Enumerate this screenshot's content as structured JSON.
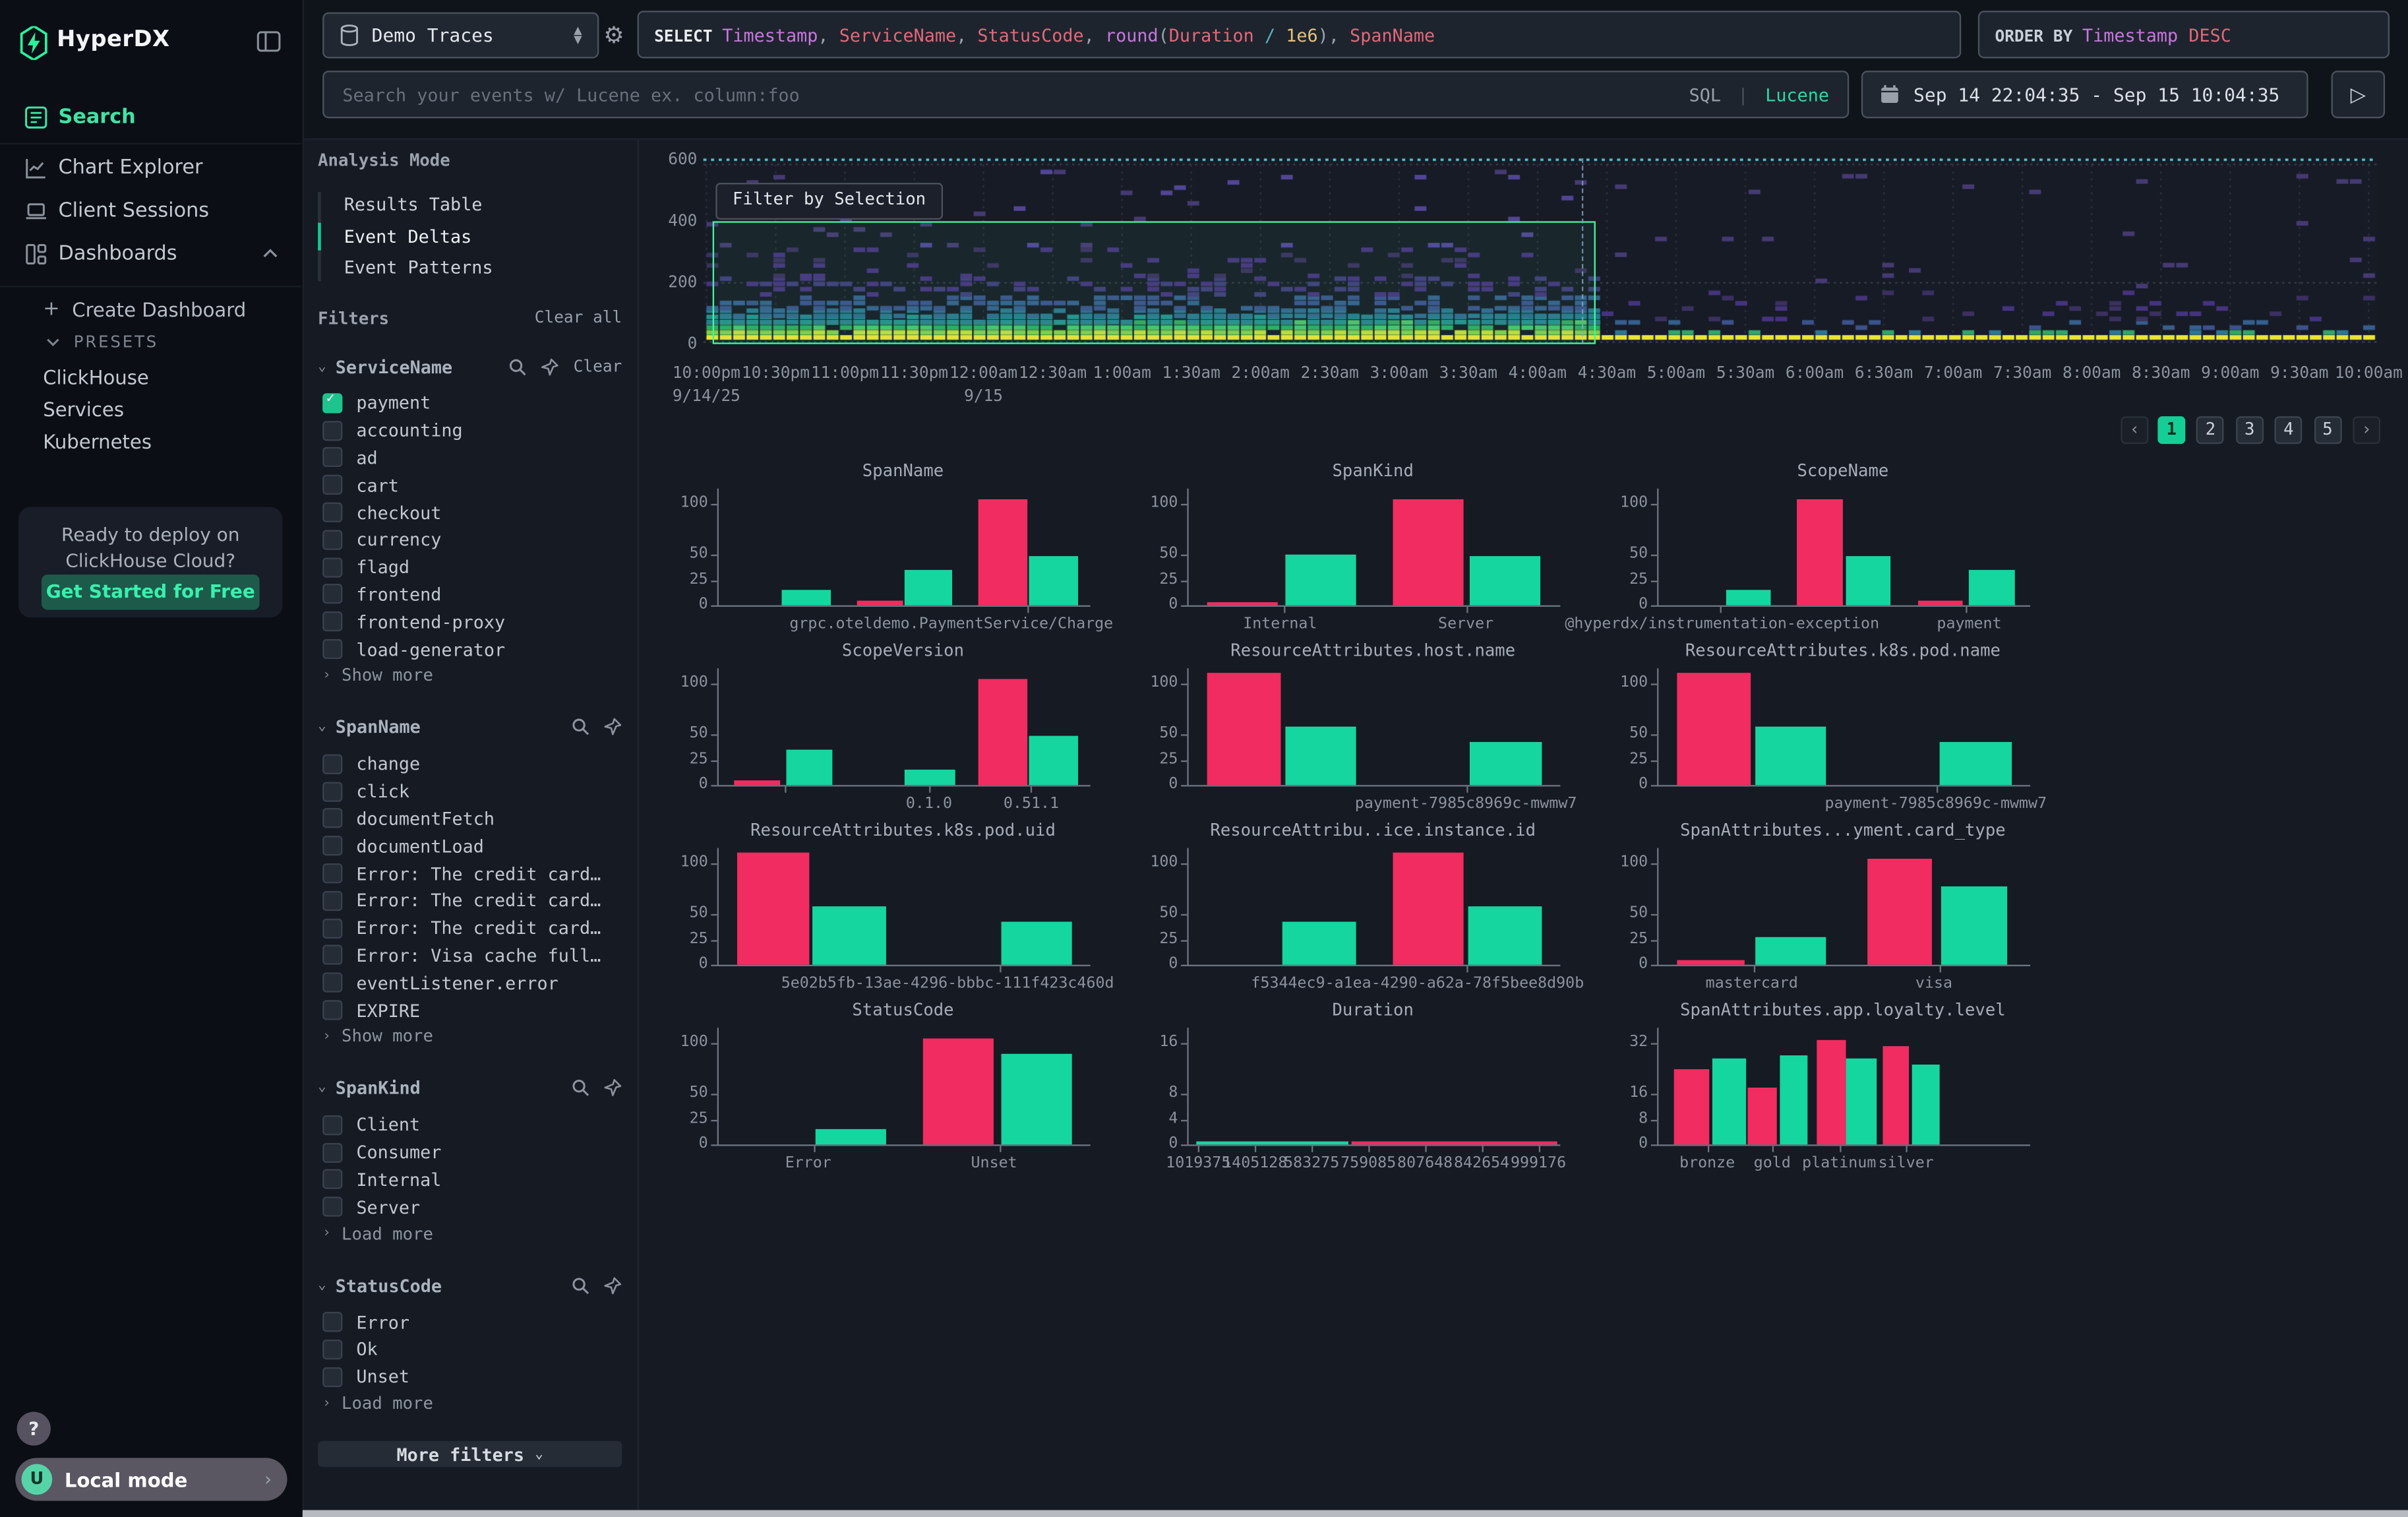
{
  "accent": {
    "green": "#16d6a0",
    "pink": "#f12c60",
    "brand_green": "#2bf09c"
  },
  "sidebar": {
    "brand": "HyperDX",
    "nav": [
      {
        "label": "Search",
        "active": true
      },
      {
        "label": "Chart Explorer",
        "active": false
      },
      {
        "label": "Client Sessions",
        "active": false
      },
      {
        "label": "Dashboards",
        "active": false,
        "expanded": true
      }
    ],
    "create_dashboard": "Create Dashboard",
    "presets": "PRESETS",
    "preset_items": [
      "ClickHouse",
      "Services",
      "Kubernetes"
    ],
    "promo": {
      "line1": "Ready to deploy on",
      "line2": "ClickHouse Cloud?",
      "cta": "Get Started for Free"
    },
    "help": "?",
    "avatar": "U",
    "local_mode": "Local mode"
  },
  "topbar": {
    "source": "Demo Traces",
    "select_tokens": [
      {
        "t": "SELECT ",
        "c": "kw"
      },
      {
        "t": "Timestamp",
        "c": "purple"
      },
      {
        "t": ", ",
        "c": "plain"
      },
      {
        "t": "ServiceName",
        "c": "red"
      },
      {
        "t": ", ",
        "c": "plain"
      },
      {
        "t": "StatusCode",
        "c": "red"
      },
      {
        "t": ", ",
        "c": "plain"
      },
      {
        "t": "round",
        "c": "purple"
      },
      {
        "t": "(",
        "c": "plain"
      },
      {
        "t": "Duration",
        "c": "red"
      },
      {
        "t": " ",
        "c": "plain"
      },
      {
        "t": "/",
        "c": "cyan"
      },
      {
        "t": " ",
        "c": "plain"
      },
      {
        "t": "1e6",
        "c": "gold"
      },
      {
        "t": ")",
        "c": "plain"
      },
      {
        "t": ", ",
        "c": "plain"
      },
      {
        "t": "SpanName",
        "c": "red"
      }
    ],
    "orderby_tokens": [
      {
        "t": "ORDER BY ",
        "c": "kw2"
      },
      {
        "t": "Timestamp",
        "c": "purple"
      },
      {
        "t": " ",
        "c": "plain"
      },
      {
        "t": "DESC",
        "c": "red"
      }
    ],
    "search_placeholder": "Search your events w/ Lucene ex. column:foo",
    "lang_sql": "SQL",
    "lang_sep": "|",
    "lang_lucene": "Lucene",
    "time_range": "Sep 14 22:04:35 - Sep 15 10:04:35",
    "run_glyph": "▷"
  },
  "filters_panel": {
    "analysis_mode_title": "Analysis Mode",
    "analysis_modes": [
      {
        "label": "Results Table",
        "active": false
      },
      {
        "label": "Event Deltas",
        "active": true
      },
      {
        "label": "Event Patterns",
        "active": false
      }
    ],
    "filters_title": "Filters",
    "clear_all": "Clear all",
    "groups": [
      {
        "name": "ServiceName",
        "clear": "Clear",
        "more": "Show more",
        "items": [
          {
            "label": "payment",
            "checked": true
          },
          {
            "label": "accounting",
            "checked": false
          },
          {
            "label": "ad",
            "checked": false
          },
          {
            "label": "cart",
            "checked": false
          },
          {
            "label": "checkout",
            "checked": false
          },
          {
            "label": "currency",
            "checked": false
          },
          {
            "label": "flagd",
            "checked": false
          },
          {
            "label": "frontend",
            "checked": false
          },
          {
            "label": "frontend-proxy",
            "checked": false
          },
          {
            "label": "load-generator",
            "checked": false
          }
        ]
      },
      {
        "name": "SpanName",
        "clear": null,
        "more": "Show more",
        "items": [
          {
            "label": "change",
            "checked": false
          },
          {
            "label": "click",
            "checked": false
          },
          {
            "label": "documentFetch",
            "checked": false
          },
          {
            "label": "documentLoad",
            "checked": false
          },
          {
            "label": "Error: The credit card (…",
            "checked": false
          },
          {
            "label": "Error: The credit card (…",
            "checked": false
          },
          {
            "label": "Error: The credit card (…",
            "checked": false
          },
          {
            "label": "Error: Visa cache full: …",
            "checked": false
          },
          {
            "label": "eventListener.error",
            "checked": false
          },
          {
            "label": "EXPIRE",
            "checked": false
          }
        ]
      },
      {
        "name": "SpanKind",
        "clear": null,
        "more": "Load more",
        "items": [
          {
            "label": "Client",
            "checked": false
          },
          {
            "label": "Consumer",
            "checked": false
          },
          {
            "label": "Internal",
            "checked": false
          },
          {
            "label": "Server",
            "checked": false
          }
        ]
      },
      {
        "name": "StatusCode",
        "clear": null,
        "more": "Load more",
        "items": [
          {
            "label": "Error",
            "checked": false
          },
          {
            "label": "Ok",
            "checked": false
          },
          {
            "label": "Unset",
            "checked": false
          }
        ]
      }
    ],
    "more_filters": "More filters"
  },
  "heatmap": {
    "filter_button": "Filter by Selection",
    "yticks": [
      "600",
      "400",
      "200",
      "0"
    ],
    "xticks": [
      "10:00pm",
      "10:30pm",
      "11:00pm",
      "11:30pm",
      "12:00am",
      "12:30am",
      "1:00am",
      "1:30am",
      "2:00am",
      "2:30am",
      "3:00am",
      "3:30am",
      "4:00am",
      "4:30am",
      "5:00am",
      "5:30am",
      "6:00am",
      "6:30am",
      "7:00am",
      "7:30am",
      "8:00am",
      "8:30am",
      "9:00am",
      "9:30am",
      "10:00am"
    ],
    "date_labels": [
      {
        "text": "9/14/25",
        "tick": 0
      },
      {
        "text": "9/15",
        "tick": 4
      }
    ]
  },
  "pagination": {
    "prev": "‹",
    "pages": [
      "1",
      "2",
      "3",
      "4",
      "5"
    ],
    "active": "1",
    "next": "›"
  },
  "chart_data": [
    {
      "type": "bar",
      "title": "SpanName",
      "ymax": 100,
      "yticks": [
        "0",
        "25",
        "50",
        "100"
      ],
      "bars": [
        {
          "color": "green",
          "value": 15,
          "x": 0.17,
          "w": 0.13
        },
        {
          "color": "pink",
          "value": 4,
          "x": 0.37,
          "w": 0.125
        },
        {
          "color": "green",
          "value": 35,
          "x": 0.5,
          "w": 0.13
        },
        {
          "color": "pink",
          "value": 105,
          "x": 0.7,
          "w": 0.13
        },
        {
          "color": "green",
          "value": 49,
          "x": 0.835,
          "w": 0.13
        }
      ],
      "xticks": [
        0.835
      ],
      "xlabels": [
        {
          "pos": 0.63,
          "text": "grpc.oteldemo.PaymentService/Charge"
        }
      ]
    },
    {
      "type": "bar",
      "title": "SpanKind",
      "ymax": 100,
      "yticks": [
        "0",
        "25",
        "50",
        "100"
      ],
      "bars": [
        {
          "color": "pink",
          "value": 3,
          "x": 0.05,
          "w": 0.19
        },
        {
          "color": "green",
          "value": 50,
          "x": 0.26,
          "w": 0.19
        },
        {
          "color": "pink",
          "value": 105,
          "x": 0.55,
          "w": 0.19
        },
        {
          "color": "green",
          "value": 49,
          "x": 0.755,
          "w": 0.19
        }
      ],
      "xticks": [
        0.26,
        0.75
      ],
      "xlabels": [
        {
          "pos": 0.25,
          "text": "Internal"
        },
        {
          "pos": 0.75,
          "text": "Server"
        }
      ]
    },
    {
      "type": "bar",
      "title": "ScopeName",
      "ymax": 100,
      "yticks": [
        "0",
        "25",
        "50",
        "100"
      ],
      "bars": [
        {
          "color": "green",
          "value": 15,
          "x": 0.18,
          "w": 0.12
        },
        {
          "color": "pink",
          "value": 105,
          "x": 0.37,
          "w": 0.125
        },
        {
          "color": "green",
          "value": 49,
          "x": 0.505,
          "w": 0.12
        },
        {
          "color": "pink",
          "value": 4,
          "x": 0.7,
          "w": 0.12
        },
        {
          "color": "green",
          "value": 35,
          "x": 0.835,
          "w": 0.125
        }
      ],
      "xticks": [
        0.17,
        0.83
      ],
      "xlabels": [
        {
          "pos": 0.175,
          "text": "@hyperdx/instrumentation-exception"
        },
        {
          "pos": 0.84,
          "text": "payment"
        }
      ]
    },
    {
      "type": "bar",
      "title": "ScopeVersion",
      "ymax": 100,
      "yticks": [
        "0",
        "25",
        "50",
        "100"
      ],
      "bars": [
        {
          "color": "pink",
          "value": 4,
          "x": 0.04,
          "w": 0.125
        },
        {
          "color": "green",
          "value": 35,
          "x": 0.18,
          "w": 0.125
        },
        {
          "color": "green",
          "value": 15,
          "x": 0.5,
          "w": 0.135
        },
        {
          "color": "pink",
          "value": 105,
          "x": 0.7,
          "w": 0.13
        },
        {
          "color": "green",
          "value": 49,
          "x": 0.835,
          "w": 0.13
        }
      ],
      "xticks": [
        0.18,
        0.57,
        0.845
      ],
      "xlabels": [
        {
          "pos": 0.57,
          "text": "0.1.0"
        },
        {
          "pos": 0.845,
          "text": "0.51.1"
        }
      ]
    },
    {
      "type": "bar",
      "title": "ResourceAttributes.host.name",
      "ymax": 100,
      "yticks": [
        "0",
        "25",
        "50",
        "100"
      ],
      "bars": [
        {
          "color": "pink",
          "value": 110,
          "x": 0.05,
          "w": 0.2
        },
        {
          "color": "green",
          "value": 57,
          "x": 0.26,
          "w": 0.19
        },
        {
          "color": "green",
          "value": 42,
          "x": 0.755,
          "w": 0.195
        }
      ],
      "xticks": [
        0.75
      ],
      "xlabels": [
        {
          "pos": 0.75,
          "text": "payment-7985c8969c-mwmw7"
        }
      ]
    },
    {
      "type": "bar",
      "title": "ResourceAttributes.k8s.pod.name",
      "ymax": 100,
      "yticks": [
        "0",
        "25",
        "50",
        "100"
      ],
      "bars": [
        {
          "color": "pink",
          "value": 110,
          "x": 0.05,
          "w": 0.2
        },
        {
          "color": "green",
          "value": 57,
          "x": 0.26,
          "w": 0.19
        },
        {
          "color": "green",
          "value": 42,
          "x": 0.755,
          "w": 0.195
        }
      ],
      "xticks": [
        0.75
      ],
      "xlabels": [
        {
          "pos": 0.75,
          "text": "payment-7985c8969c-mwmw7"
        }
      ]
    },
    {
      "type": "bar",
      "title": "ResourceAttributes.k8s.pod.uid",
      "ymax": 100,
      "yticks": [
        "0",
        "25",
        "50",
        "100"
      ],
      "bars": [
        {
          "color": "pink",
          "value": 110,
          "x": 0.05,
          "w": 0.195
        },
        {
          "color": "green",
          "value": 57,
          "x": 0.25,
          "w": 0.2
        },
        {
          "color": "green",
          "value": 42,
          "x": 0.76,
          "w": 0.19
        }
      ],
      "xticks": [
        0.76
      ],
      "xlabels": [
        {
          "pos": 0.62,
          "text": "5e02b5fb-13ae-4296-bbbc-111f423c460d"
        }
      ]
    },
    {
      "type": "bar",
      "title": "ResourceAttribu..ice.instance.id",
      "ymax": 100,
      "yticks": [
        "0",
        "25",
        "50",
        "100"
      ],
      "bars": [
        {
          "color": "green",
          "value": 42,
          "x": 0.25,
          "w": 0.2
        },
        {
          "color": "pink",
          "value": 110,
          "x": 0.55,
          "w": 0.19
        },
        {
          "color": "green",
          "value": 57,
          "x": 0.75,
          "w": 0.2
        }
      ],
      "xticks": [
        0.75
      ],
      "xlabels": [
        {
          "pos": 0.62,
          "text": "f5344ec9-a1ea-4290-a62a-78f5bee8d90b"
        }
      ]
    },
    {
      "type": "bar",
      "title": "SpanAttributes...yment.card_type",
      "ymax": 100,
      "yticks": [
        "0",
        "25",
        "50",
        "100"
      ],
      "bars": [
        {
          "color": "pink",
          "value": 4,
          "x": 0.05,
          "w": 0.18
        },
        {
          "color": "green",
          "value": 28,
          "x": 0.26,
          "w": 0.19
        },
        {
          "color": "pink",
          "value": 105,
          "x": 0.56,
          "w": 0.175
        },
        {
          "color": "green",
          "value": 78,
          "x": 0.76,
          "w": 0.18
        }
      ],
      "xticks": [
        0.26,
        0.76
      ],
      "xlabels": [
        {
          "pos": 0.255,
          "text": "mastercard"
        },
        {
          "pos": 0.745,
          "text": "visa"
        }
      ]
    },
    {
      "type": "bar",
      "title": "StatusCode",
      "ymax": 100,
      "yticks": [
        "0",
        "25",
        "50",
        "100"
      ],
      "bars": [
        {
          "color": "green",
          "value": 15,
          "x": 0.26,
          "w": 0.19
        },
        {
          "color": "pink",
          "value": 105,
          "x": 0.55,
          "w": 0.19
        },
        {
          "color": "green",
          "value": 90,
          "x": 0.76,
          "w": 0.19
        }
      ],
      "xticks": [
        0.26,
        0.76
      ],
      "xlabels": [
        {
          "pos": 0.245,
          "text": "Error"
        },
        {
          "pos": 0.745,
          "text": "Unset"
        }
      ]
    },
    {
      "type": "bar",
      "title": "Duration",
      "ymax": 16,
      "yticks": [
        "0",
        "4",
        "8",
        "16"
      ],
      "bars": [
        {
          "color": "green",
          "value": 0.4,
          "x": 0.02,
          "w": 0.41
        },
        {
          "color": "pink",
          "value": 0.4,
          "x": 0.44,
          "w": 0.55
        }
      ],
      "xticks": [
        0.03,
        0.1825,
        0.335,
        0.4875,
        0.64,
        0.7925,
        0.945
      ],
      "xlabels": [
        {
          "pos": 0.03,
          "text": "1019375"
        },
        {
          "pos": 0.1825,
          "text": "1405128"
        },
        {
          "pos": 0.335,
          "text": "583275"
        },
        {
          "pos": 0.4875,
          "text": "759085"
        },
        {
          "pos": 0.64,
          "text": "807648"
        },
        {
          "pos": 0.7925,
          "text": "842654"
        },
        {
          "pos": 0.945,
          "text": "999176"
        }
      ]
    },
    {
      "type": "bar",
      "title": "SpanAttributes.app.loyalty.level",
      "ymax": 32,
      "yticks": [
        "0",
        "8",
        "16",
        "32"
      ],
      "bars": [
        {
          "color": "pink",
          "value": 24,
          "x": 0.04,
          "w": 0.095
        },
        {
          "color": "green",
          "value": 27,
          "x": 0.145,
          "w": 0.09
        },
        {
          "color": "pink",
          "value": 18,
          "x": 0.24,
          "w": 0.08
        },
        {
          "color": "green",
          "value": 28,
          "x": 0.325,
          "w": 0.075
        },
        {
          "color": "pink",
          "value": 33,
          "x": 0.425,
          "w": 0.08
        },
        {
          "color": "green",
          "value": 27,
          "x": 0.505,
          "w": 0.08
        },
        {
          "color": "pink",
          "value": 31,
          "x": 0.605,
          "w": 0.07
        },
        {
          "color": "green",
          "value": 25,
          "x": 0.68,
          "w": 0.075
        }
      ],
      "xticks": [
        0.135,
        0.31,
        0.49,
        0.67
      ],
      "xlabels": [
        {
          "pos": 0.135,
          "text": "bronze"
        },
        {
          "pos": 0.31,
          "text": "gold"
        },
        {
          "pos": 0.49,
          "text": "platinum"
        },
        {
          "pos": 0.67,
          "text": "silver"
        }
      ]
    }
  ]
}
